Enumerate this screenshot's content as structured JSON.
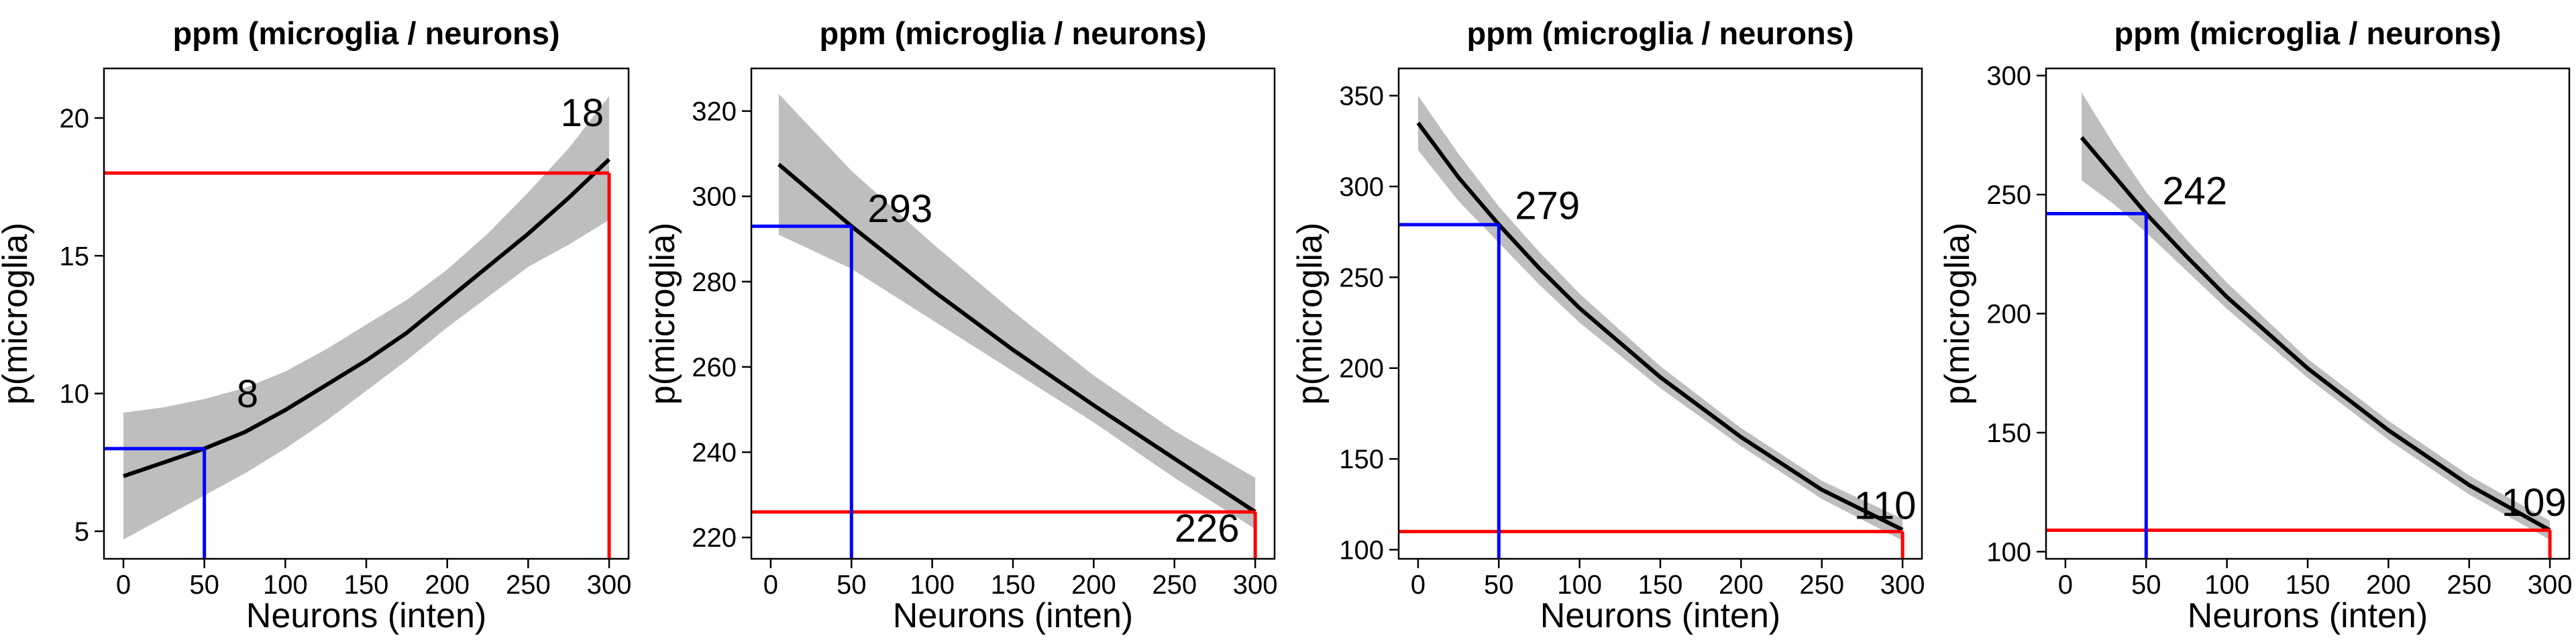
{
  "chart_data": [
    {
      "type": "line",
      "title": "ppm (microglia / neurons)",
      "xlabel": "Neurons (inten)",
      "ylabel": "p(microglia)",
      "xlim": [
        -12,
        312
      ],
      "ylim": [
        4.0,
        21.8
      ],
      "xticks": [
        0,
        50,
        100,
        150,
        200,
        250,
        300
      ],
      "xtick_labels": [
        "0",
        "50",
        "100",
        "150",
        "200",
        "250",
        "300"
      ],
      "yticks": [
        5,
        10,
        15,
        20
      ],
      "ytick_labels": [
        "5",
        "10",
        "15",
        "20"
      ],
      "fit": {
        "x": [
          0,
          25,
          50,
          75,
          100,
          125,
          150,
          175,
          200,
          225,
          250,
          275,
          300
        ],
        "y": [
          7.0,
          7.5,
          8.0,
          8.6,
          9.4,
          10.3,
          11.2,
          12.2,
          13.4,
          14.6,
          15.8,
          17.1,
          18.5
        ]
      },
      "band": {
        "lower": [
          4.7,
          5.5,
          6.3,
          7.1,
          8.0,
          9.0,
          10.1,
          11.2,
          12.4,
          13.5,
          14.6,
          15.4,
          16.3
        ],
        "upper": [
          9.3,
          9.5,
          9.8,
          10.2,
          10.8,
          11.6,
          12.5,
          13.4,
          14.5,
          15.8,
          17.3,
          18.9,
          20.8
        ]
      },
      "blue_marker": {
        "x": 50,
        "y": 8.0
      },
      "red_marker": {
        "x": 300,
        "y": 18.0
      },
      "annotations": [
        {
          "text": "8",
          "x": 70,
          "y": 9.5
        },
        {
          "text": "18",
          "x": 270,
          "y": 19.7
        }
      ],
      "colors": {
        "fit": "#000000",
        "band": "#bebebe",
        "blue": "#0000ff",
        "red": "#ff0000"
      }
    },
    {
      "type": "line",
      "title": "ppm (microglia / neurons)",
      "xlabel": "Neurons (inten)",
      "ylabel": "p(microglia)",
      "xlim": [
        -12,
        312
      ],
      "ylim": [
        215,
        330
      ],
      "xticks": [
        0,
        50,
        100,
        150,
        200,
        250,
        300
      ],
      "xtick_labels": [
        "0",
        "50",
        "100",
        "150",
        "200",
        "250",
        "300"
      ],
      "yticks": [
        220,
        240,
        260,
        280,
        300,
        320
      ],
      "ytick_labels": [
        "220",
        "240",
        "260",
        "280",
        "300",
        "320"
      ],
      "fit": {
        "x": [
          5,
          50,
          100,
          150,
          200,
          250,
          300
        ],
        "y": [
          307.5,
          293,
          278,
          264,
          251,
          238.5,
          226
        ]
      },
      "band": {
        "lower": [
          291,
          283,
          271,
          259,
          247,
          234,
          222
        ],
        "upper": [
          324,
          306,
          289,
          273,
          258,
          245,
          234
        ]
      },
      "blue_marker": {
        "x": 50,
        "y": 293
      },
      "red_marker": {
        "x": 300,
        "y": 226
      },
      "annotations": [
        {
          "text": "293",
          "x": 60,
          "y": 294
        },
        {
          "text": "226",
          "x": 250,
          "y": 219
        }
      ],
      "colors": {
        "fit": "#000000",
        "band": "#bebebe",
        "blue": "#0000ff",
        "red": "#ff0000"
      }
    },
    {
      "type": "line",
      "title": "ppm (microglia / neurons)",
      "xlabel": "Neurons (inten)",
      "ylabel": "p(microglia)",
      "xlim": [
        -12,
        312
      ],
      "ylim": [
        95,
        365
      ],
      "xticks": [
        0,
        50,
        100,
        150,
        200,
        250,
        300
      ],
      "xtick_labels": [
        "0",
        "50",
        "100",
        "150",
        "200",
        "250",
        "300"
      ],
      "yticks": [
        100,
        150,
        200,
        250,
        300,
        350
      ],
      "ytick_labels": [
        "100",
        "150",
        "200",
        "250",
        "300",
        "350"
      ],
      "fit": {
        "x": [
          0,
          25,
          50,
          75,
          100,
          150,
          200,
          250,
          300
        ],
        "y": [
          335,
          305,
          279,
          255,
          233,
          195,
          162,
          133,
          111
        ]
      },
      "band": {
        "lower": [
          320,
          292,
          269,
          246,
          225,
          189,
          157,
          128,
          105
        ],
        "upper": [
          350,
          318,
          289,
          264,
          241,
          201,
          167,
          138,
          117
        ]
      },
      "blue_marker": {
        "x": 50,
        "y": 279
      },
      "red_marker": {
        "x": 300,
        "y": 110
      },
      "annotations": [
        {
          "text": "279",
          "x": 60,
          "y": 282
        },
        {
          "text": "110",
          "x": 270,
          "y": 117
        }
      ],
      "colors": {
        "fit": "#000000",
        "band": "#bebebe",
        "blue": "#0000ff",
        "red": "#ff0000"
      }
    },
    {
      "type": "line",
      "title": "ppm (microglia / neurons)",
      "xlabel": "Neurons (inten)",
      "ylabel": "p(microglia)",
      "xlim": [
        -12,
        312
      ],
      "ylim": [
        97,
        303
      ],
      "xticks": [
        0,
        50,
        100,
        150,
        200,
        250,
        300
      ],
      "xtick_labels": [
        "0",
        "50",
        "100",
        "150",
        "200",
        "250",
        "300"
      ],
      "yticks": [
        100,
        150,
        200,
        250,
        300
      ],
      "ytick_labels": [
        "100",
        "150",
        "200",
        "250",
        "300"
      ],
      "fit": {
        "x": [
          10,
          30,
          50,
          75,
          100,
          150,
          200,
          250,
          300
        ],
        "y": [
          274,
          258,
          242,
          224,
          207,
          177,
          151,
          128,
          109
        ]
      },
      "band": {
        "lower": [
          256,
          246,
          234,
          218,
          202,
          173,
          147,
          124,
          105
        ],
        "upper": [
          293,
          271,
          251,
          231,
          213,
          181,
          155,
          132,
          113
        ]
      },
      "blue_marker": {
        "x": 50,
        "y": 242
      },
      "red_marker": {
        "x": 300,
        "y": 109
      },
      "annotations": [
        {
          "text": "242",
          "x": 60,
          "y": 246
        },
        {
          "text": "109",
          "x": 270,
          "y": 115
        }
      ],
      "colors": {
        "fit": "#000000",
        "band": "#bebebe",
        "blue": "#0000ff",
        "red": "#ff0000"
      }
    }
  ]
}
